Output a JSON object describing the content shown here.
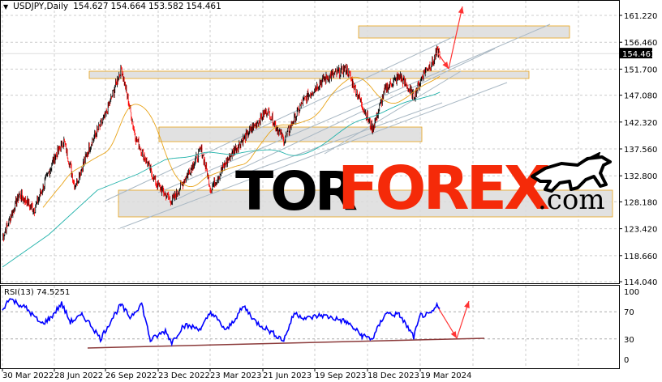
{
  "header": {
    "symbol_timeframe": "USDJPY,Daily",
    "open": "154.627",
    "high": "154.664",
    "low": "153.582",
    "close": "154.461",
    "menu_icon": "triangle-down-icon"
  },
  "rsi": {
    "title": "RSI(13) 74.5251"
  },
  "logo": {
    "part1": "TOR",
    "part2": "FOREX",
    "part3": ".com",
    "icon": "bull-icon"
  },
  "colors": {
    "bull_candle": "#000000",
    "bear_candle": "#ff0000",
    "ma_fast": "#e8a317",
    "ma_slow": "#20b2aa",
    "rsi_line": "#0000ff",
    "arrow": "#ff3333",
    "zone_border": "#e8a317"
  },
  "chart_data": [
    {
      "type": "candlestick",
      "title": "USDJPY,Daily",
      "price_ticks": [
        "161.220",
        "156.460",
        "151.700",
        "147.080",
        "142.320",
        "137.560",
        "132.800",
        "128.180",
        "123.420",
        "118.660",
        "114.040"
      ],
      "ylim": [
        114.04,
        161.22
      ],
      "current_price_label": "154.461",
      "x_ticks": [
        "30 Mar 2022",
        "28 Jun 2022",
        "26 Sep 2022",
        "23 Dec 2022",
        "23 Mar 2023",
        "21 Jun 2023",
        "19 Sep 2023",
        "18 Dec 2023",
        "19 Mar 2024"
      ],
      "grid": true,
      "series": [
        {
          "x": [
            "2022-03-30",
            "2022-04-28",
            "2022-05-24",
            "2022-06-28",
            "2022-07-14",
            "2022-08-02",
            "2022-08-30",
            "2022-09-22",
            "2022-10-21",
            "2022-11-15",
            "2022-12-20",
            "2023-01-16",
            "2023-03-08",
            "2023-03-24",
            "2023-05-01",
            "2023-06-30",
            "2023-07-28",
            "2023-08-30",
            "2023-10-03",
            "2023-11-13",
            "2023-12-28",
            "2024-01-19",
            "2024-02-13",
            "2024-03-08",
            "2024-03-27",
            "2024-04-12",
            "2024-04-17",
            "2024-04-22"
          ],
          "close": [
            121.8,
            129.5,
            126.8,
            136.1,
            139.0,
            131.0,
            138.7,
            143.0,
            151.9,
            139.5,
            131.5,
            128.2,
            137.5,
            130.5,
            137.0,
            144.5,
            139.0,
            146.0,
            149.8,
            151.8,
            141.0,
            148.1,
            150.5,
            146.8,
            151.4,
            153.2,
            154.8,
            154.461
          ]
        }
      ]
    },
    {
      "type": "line",
      "title": "RSI(13) 74.5251",
      "y_ticks": [
        "100",
        "70",
        "30",
        "0"
      ],
      "ylim": [
        0,
        100
      ],
      "levels": [
        70,
        30
      ],
      "series": [
        {
          "x": [
            "2022-03-30",
            "2022-04-10",
            "2022-05-10",
            "2022-06-05",
            "2022-06-20",
            "2022-07-10",
            "2022-07-25",
            "2022-08-15",
            "2022-09-01",
            "2022-09-15",
            "2022-10-05",
            "2022-10-20",
            "2022-11-05",
            "2022-11-25",
            "2022-12-10",
            "2023-01-05",
            "2023-01-16",
            "2023-02-05",
            "2023-03-08",
            "2023-03-24",
            "2023-04-20",
            "2023-05-20",
            "2023-06-10",
            "2023-07-28",
            "2023-08-15",
            "2023-09-05",
            "2023-10-01",
            "2023-10-25",
            "2023-11-13",
            "2023-12-10",
            "2023-12-28",
            "2024-01-19",
            "2024-02-13",
            "2024-03-08",
            "2024-03-20",
            "2024-04-05",
            "2024-04-17",
            "2024-04-22"
          ],
          "values": [
            70,
            90,
            75,
            52,
            60,
            82,
            55,
            65,
            48,
            30,
            60,
            80,
            62,
            82,
            28,
            42,
            25,
            50,
            45,
            70,
            42,
            78,
            55,
            28,
            68,
            60,
            65,
            60,
            55,
            35,
            30,
            68,
            65,
            33,
            65,
            65,
            78,
            74.5
          ]
        }
      ]
    }
  ]
}
